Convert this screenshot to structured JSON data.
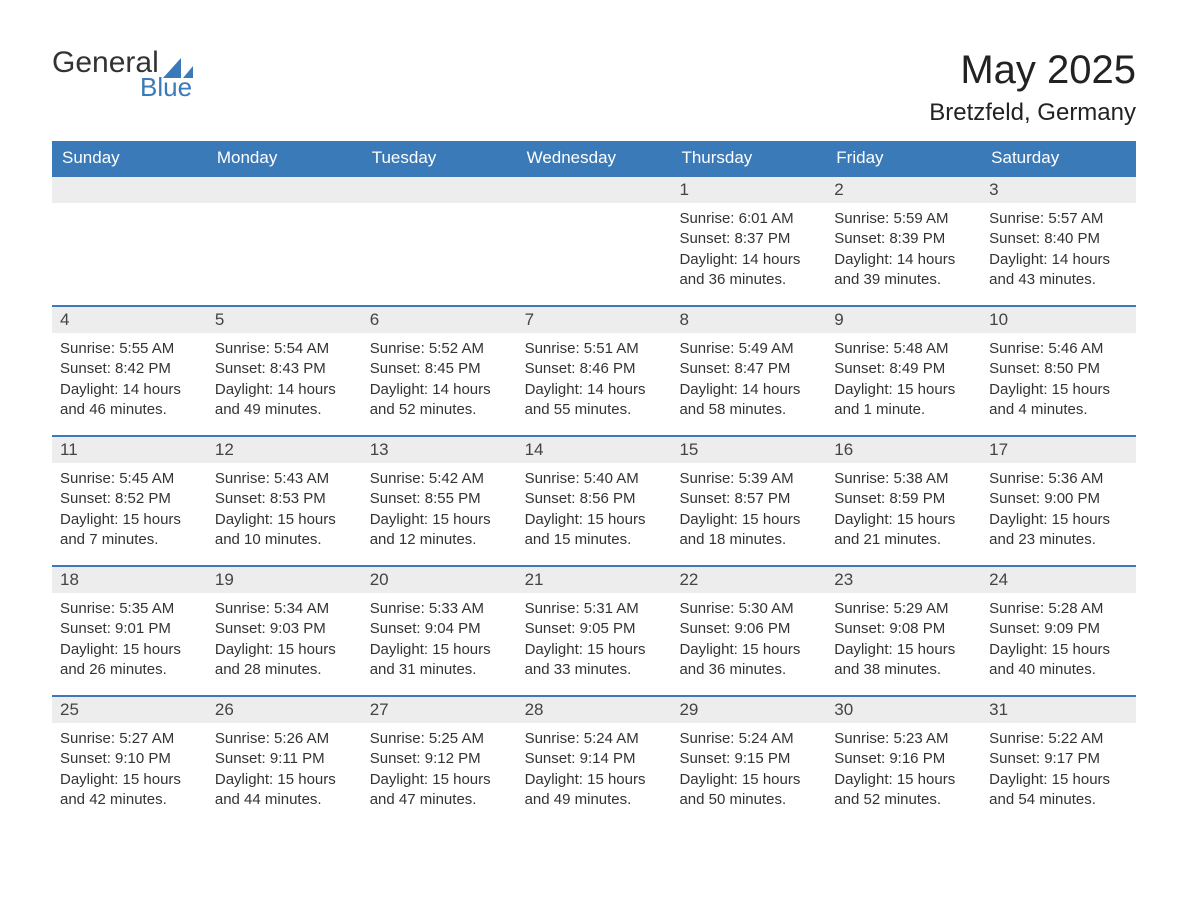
{
  "logo": {
    "text1": "General",
    "text2": "Blue",
    "sail_color": "#3a7ab8"
  },
  "title": "May 2025",
  "location": "Bretzfeld, Germany",
  "colors": {
    "header_bg": "#3a7ab8",
    "header_text": "#ffffff",
    "daynum_bg": "#ededed",
    "daynum_border": "#3a7ab8",
    "body_text": "#333333",
    "page_bg": "#ffffff"
  },
  "layout": {
    "columns": 7,
    "rows": 5,
    "leading_blanks": 4,
    "font_family": "Arial",
    "title_fontsize": 40,
    "location_fontsize": 24,
    "weekday_fontsize": 17,
    "daynum_fontsize": 17,
    "body_fontsize": 15
  },
  "weekdays": [
    "Sunday",
    "Monday",
    "Tuesday",
    "Wednesday",
    "Thursday",
    "Friday",
    "Saturday"
  ],
  "labels": {
    "sunrise": "Sunrise",
    "sunset": "Sunset",
    "daylight": "Daylight"
  },
  "days": [
    {
      "n": 1,
      "sunrise": "6:01 AM",
      "sunset": "8:37 PM",
      "daylight": "14 hours and 36 minutes."
    },
    {
      "n": 2,
      "sunrise": "5:59 AM",
      "sunset": "8:39 PM",
      "daylight": "14 hours and 39 minutes."
    },
    {
      "n": 3,
      "sunrise": "5:57 AM",
      "sunset": "8:40 PM",
      "daylight": "14 hours and 43 minutes."
    },
    {
      "n": 4,
      "sunrise": "5:55 AM",
      "sunset": "8:42 PM",
      "daylight": "14 hours and 46 minutes."
    },
    {
      "n": 5,
      "sunrise": "5:54 AM",
      "sunset": "8:43 PM",
      "daylight": "14 hours and 49 minutes."
    },
    {
      "n": 6,
      "sunrise": "5:52 AM",
      "sunset": "8:45 PM",
      "daylight": "14 hours and 52 minutes."
    },
    {
      "n": 7,
      "sunrise": "5:51 AM",
      "sunset": "8:46 PM",
      "daylight": "14 hours and 55 minutes."
    },
    {
      "n": 8,
      "sunrise": "5:49 AM",
      "sunset": "8:47 PM",
      "daylight": "14 hours and 58 minutes."
    },
    {
      "n": 9,
      "sunrise": "5:48 AM",
      "sunset": "8:49 PM",
      "daylight": "15 hours and 1 minute."
    },
    {
      "n": 10,
      "sunrise": "5:46 AM",
      "sunset": "8:50 PM",
      "daylight": "15 hours and 4 minutes."
    },
    {
      "n": 11,
      "sunrise": "5:45 AM",
      "sunset": "8:52 PM",
      "daylight": "15 hours and 7 minutes."
    },
    {
      "n": 12,
      "sunrise": "5:43 AM",
      "sunset": "8:53 PM",
      "daylight": "15 hours and 10 minutes."
    },
    {
      "n": 13,
      "sunrise": "5:42 AM",
      "sunset": "8:55 PM",
      "daylight": "15 hours and 12 minutes."
    },
    {
      "n": 14,
      "sunrise": "5:40 AM",
      "sunset": "8:56 PM",
      "daylight": "15 hours and 15 minutes."
    },
    {
      "n": 15,
      "sunrise": "5:39 AM",
      "sunset": "8:57 PM",
      "daylight": "15 hours and 18 minutes."
    },
    {
      "n": 16,
      "sunrise": "5:38 AM",
      "sunset": "8:59 PM",
      "daylight": "15 hours and 21 minutes."
    },
    {
      "n": 17,
      "sunrise": "5:36 AM",
      "sunset": "9:00 PM",
      "daylight": "15 hours and 23 minutes."
    },
    {
      "n": 18,
      "sunrise": "5:35 AM",
      "sunset": "9:01 PM",
      "daylight": "15 hours and 26 minutes."
    },
    {
      "n": 19,
      "sunrise": "5:34 AM",
      "sunset": "9:03 PM",
      "daylight": "15 hours and 28 minutes."
    },
    {
      "n": 20,
      "sunrise": "5:33 AM",
      "sunset": "9:04 PM",
      "daylight": "15 hours and 31 minutes."
    },
    {
      "n": 21,
      "sunrise": "5:31 AM",
      "sunset": "9:05 PM",
      "daylight": "15 hours and 33 minutes."
    },
    {
      "n": 22,
      "sunrise": "5:30 AM",
      "sunset": "9:06 PM",
      "daylight": "15 hours and 36 minutes."
    },
    {
      "n": 23,
      "sunrise": "5:29 AM",
      "sunset": "9:08 PM",
      "daylight": "15 hours and 38 minutes."
    },
    {
      "n": 24,
      "sunrise": "5:28 AM",
      "sunset": "9:09 PM",
      "daylight": "15 hours and 40 minutes."
    },
    {
      "n": 25,
      "sunrise": "5:27 AM",
      "sunset": "9:10 PM",
      "daylight": "15 hours and 42 minutes."
    },
    {
      "n": 26,
      "sunrise": "5:26 AM",
      "sunset": "9:11 PM",
      "daylight": "15 hours and 44 minutes."
    },
    {
      "n": 27,
      "sunrise": "5:25 AM",
      "sunset": "9:12 PM",
      "daylight": "15 hours and 47 minutes."
    },
    {
      "n": 28,
      "sunrise": "5:24 AM",
      "sunset": "9:14 PM",
      "daylight": "15 hours and 49 minutes."
    },
    {
      "n": 29,
      "sunrise": "5:24 AM",
      "sunset": "9:15 PM",
      "daylight": "15 hours and 50 minutes."
    },
    {
      "n": 30,
      "sunrise": "5:23 AM",
      "sunset": "9:16 PM",
      "daylight": "15 hours and 52 minutes."
    },
    {
      "n": 31,
      "sunrise": "5:22 AM",
      "sunset": "9:17 PM",
      "daylight": "15 hours and 54 minutes."
    }
  ]
}
